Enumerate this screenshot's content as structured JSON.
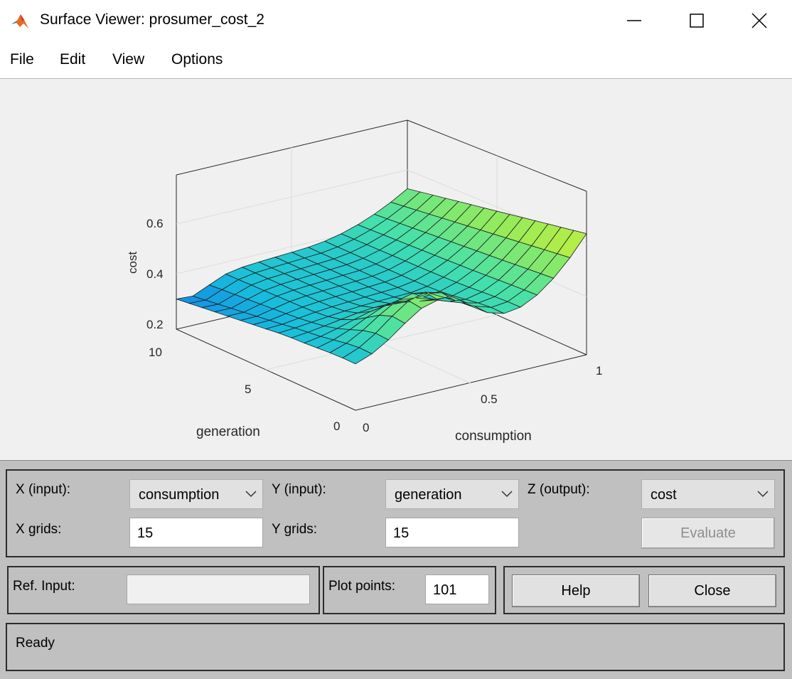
{
  "window": {
    "title": "Surface Viewer: prosumer_cost_2",
    "app_icon": "matlab-icon",
    "controls": [
      "minimize-icon",
      "maximize-icon",
      "close-icon"
    ]
  },
  "menu": [
    "File",
    "Edit",
    "View",
    "Options"
  ],
  "chart_data": {
    "type": "surface",
    "zlabel": "cost",
    "xlabel": "consumption",
    "ylabel": "generation",
    "xlim": [
      0,
      1
    ],
    "ylim": [
      0,
      10
    ],
    "z_ticks": [
      "0.2",
      "0.4",
      "0.6"
    ],
    "x_ticks": [
      "0",
      "0.5",
      "1"
    ],
    "y_ticks": [
      "0",
      "5",
      "10"
    ],
    "grid": true,
    "colormap": "parula",
    "grid_points": 15
  },
  "controls": {
    "x_input_label": "X (input):",
    "x_input_value": "consumption",
    "y_input_label": "Y (input):",
    "y_input_value": "generation",
    "z_output_label": "Z (output):",
    "z_output_value": "cost",
    "x_grids_label": "X grids:",
    "x_grids_value": "15",
    "y_grids_label": "Y grids:",
    "y_grids_value": "15",
    "evaluate_label": "Evaluate",
    "ref_input_label": "Ref. Input:",
    "ref_input_value": "",
    "plot_points_label": "Plot points:",
    "plot_points_value": "101",
    "help_label": "Help",
    "close_label": "Close"
  },
  "status": "Ready"
}
